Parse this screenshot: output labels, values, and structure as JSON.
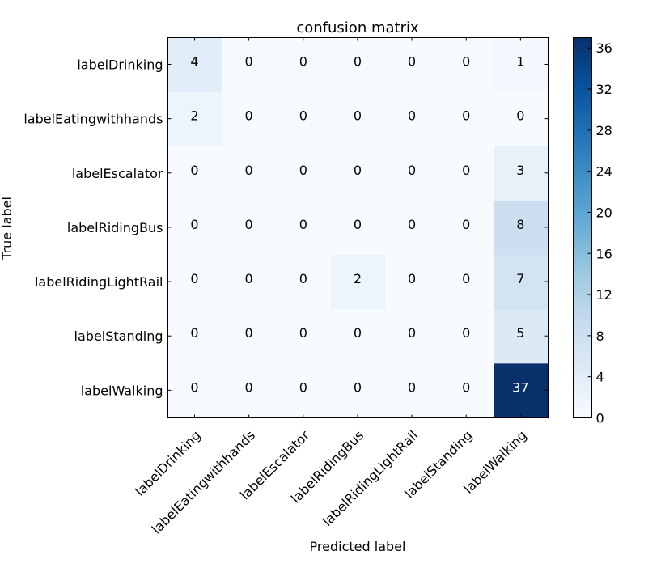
{
  "chart_data": {
    "type": "heatmap",
    "title": "confusion matrix",
    "xlabel": "Predicted label",
    "ylabel": "True label",
    "x_categories": [
      "labelDrinking",
      "labelEatingwithhands",
      "labelEscalator",
      "labelRidingBus",
      "labelRidingLightRail",
      "labelStanding",
      "labelWalking"
    ],
    "y_categories": [
      "labelDrinking",
      "labelEatingwithhands",
      "labelEscalator",
      "labelRidingBus",
      "labelRidingLightRail",
      "labelStanding",
      "labelWalking"
    ],
    "values": [
      [
        4,
        0,
        0,
        0,
        0,
        0,
        1
      ],
      [
        2,
        0,
        0,
        0,
        0,
        0,
        0
      ],
      [
        0,
        0,
        0,
        0,
        0,
        0,
        3
      ],
      [
        0,
        0,
        0,
        0,
        0,
        0,
        8
      ],
      [
        0,
        0,
        0,
        2,
        0,
        0,
        7
      ],
      [
        0,
        0,
        0,
        0,
        0,
        0,
        5
      ],
      [
        0,
        0,
        0,
        0,
        0,
        0,
        37
      ]
    ],
    "colormap": "Blues",
    "colormap_stops": [
      "#f7fbff",
      "#deebf7",
      "#c6dbef",
      "#9ecae1",
      "#6baed6",
      "#4292c6",
      "#2171b5",
      "#08519c",
      "#08306b"
    ],
    "colorbar": {
      "range": [
        0,
        37
      ],
      "ticks": [
        0,
        4,
        8,
        12,
        16,
        20,
        24,
        28,
        32,
        36
      ]
    },
    "grid": false
  }
}
